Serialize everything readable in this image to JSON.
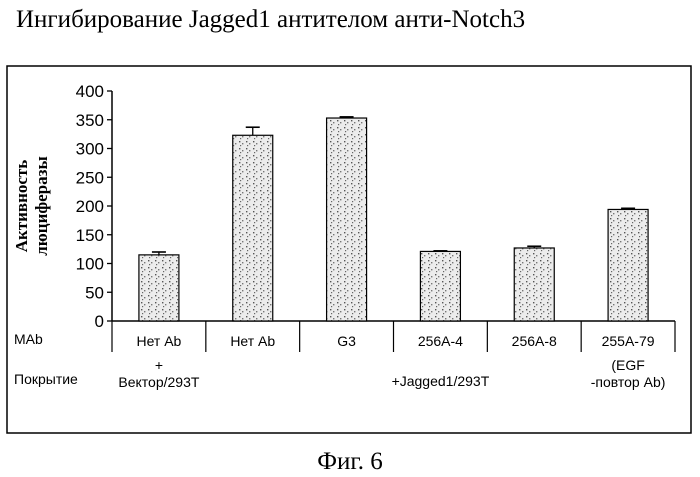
{
  "title": "Ингибирование Jagged1 антителом анти-Notch3",
  "caption": "Фиг. 6",
  "chart_data": {
    "type": "bar",
    "ylabel": [
      "Активность",
      "люциферазы"
    ],
    "ylim": [
      0,
      400
    ],
    "yticks": [
      0,
      50,
      100,
      150,
      200,
      250,
      300,
      350,
      400
    ],
    "grid": false,
    "row_labels": {
      "mab": "MAb",
      "coating": "Покрытие"
    },
    "categories": [
      "Нет Ab",
      "Нет Ab",
      "G3",
      "256A-4",
      "256A-8",
      "255A-79"
    ],
    "values": [
      115,
      323,
      353,
      121,
      127,
      194
    ],
    "errors": [
      5,
      14,
      2,
      1,
      3,
      2
    ],
    "coating_labels": [
      {
        "lines": [
          "+",
          "Вектор/293T"
        ],
        "slot": 0
      },
      {
        "lines": [
          "+Jagged1/293T"
        ],
        "slot": 3
      },
      {
        "lines": [
          "(EGF",
          "-повтор Ab)"
        ],
        "slot": 5
      }
    ],
    "bar_fill": "#d6d6d6",
    "bar_stroke": "#000000"
  }
}
